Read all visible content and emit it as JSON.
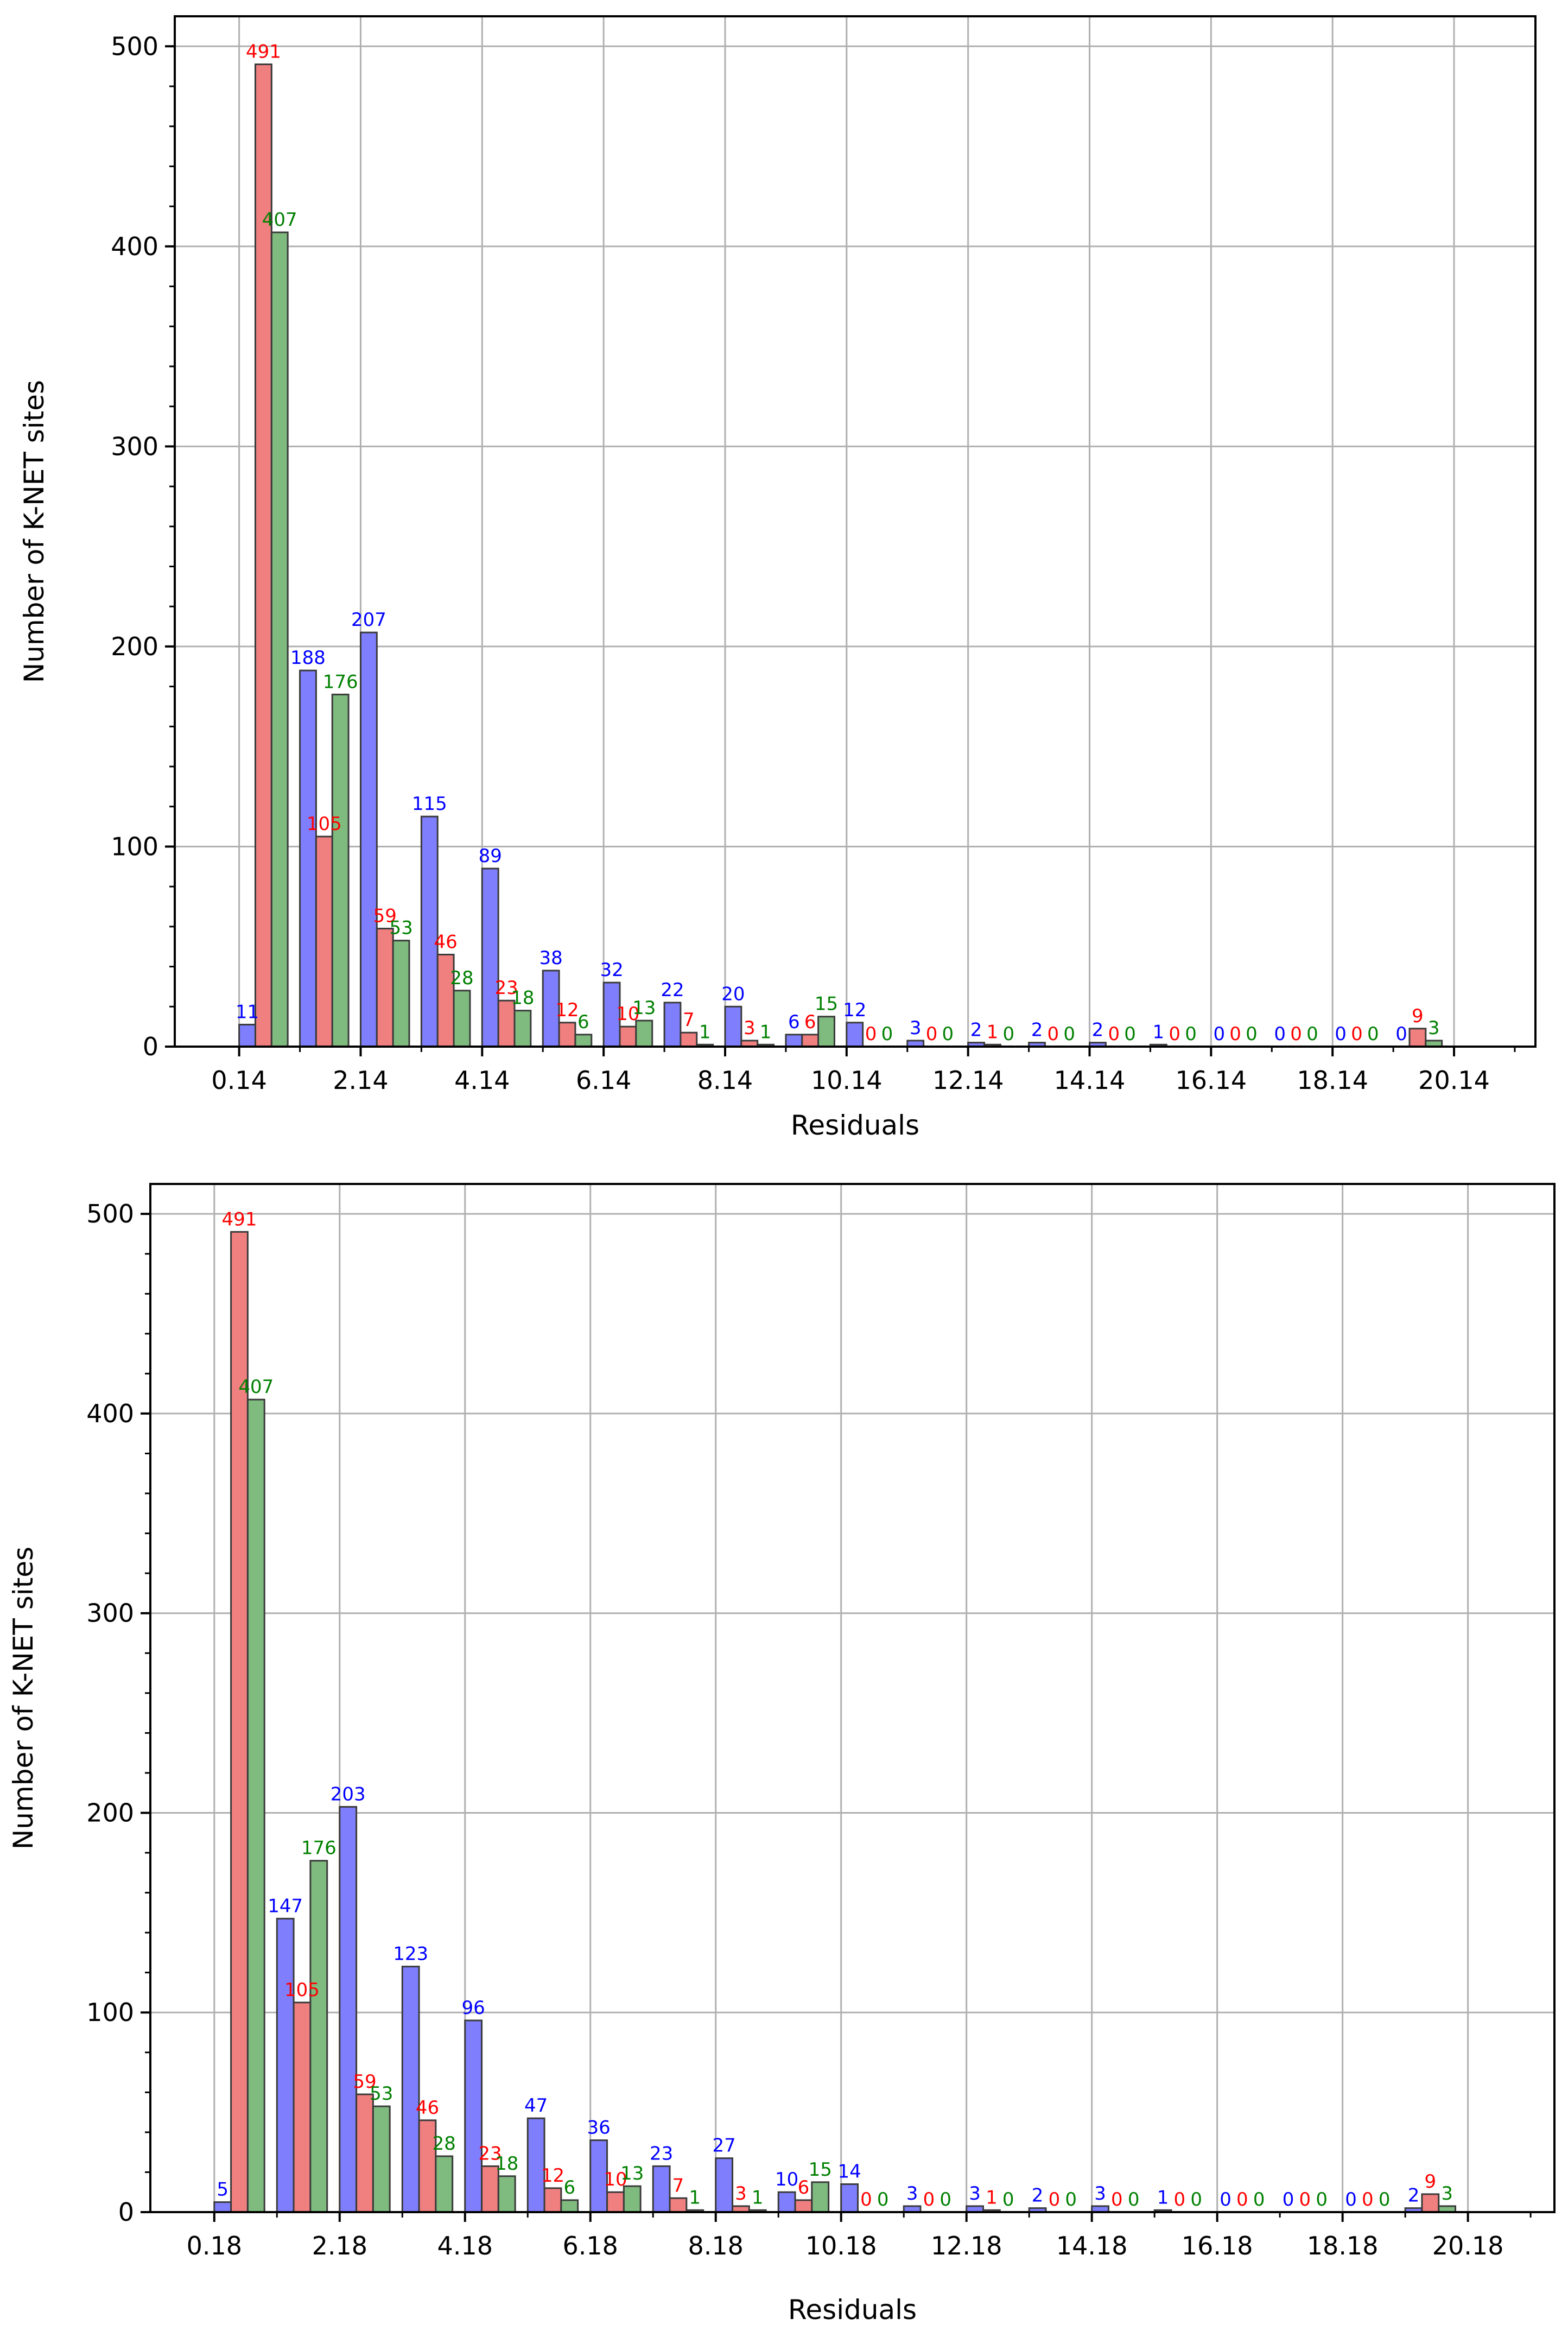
{
  "chart_data": [
    {
      "type": "bar",
      "ylabel": "Number of K-NET sites",
      "xlabel": "Residuals",
      "ylim": [
        0,
        515
      ],
      "xlim": [
        -1.06,
        21.34
      ],
      "yticks": [
        0,
        100,
        200,
        300,
        400,
        500
      ],
      "xtick_labels": [
        "0.14",
        "2.14",
        "4.14",
        "6.14",
        "8.14",
        "10.14",
        "12.14",
        "14.14",
        "16.14",
        "18.14",
        "20.14"
      ],
      "grid": true,
      "series": [
        {
          "color": "#0000ff",
          "values": [
            11,
            188,
            207,
            115,
            89,
            38,
            32,
            22,
            20,
            6,
            12,
            3,
            2,
            2,
            2,
            1,
            0,
            0,
            0,
            0
          ]
        },
        {
          "color": "#ff0000",
          "values": [
            491,
            105,
            59,
            46,
            23,
            12,
            10,
            7,
            3,
            6,
            0,
            0,
            1,
            0,
            0,
            0,
            0,
            0,
            0,
            9
          ]
        },
        {
          "color": "#008000",
          "values": [
            407,
            176,
            53,
            28,
            18,
            6,
            13,
            1,
            1,
            15,
            0,
            0,
            0,
            0,
            0,
            0,
            0,
            0,
            0,
            3
          ]
        }
      ]
    },
    {
      "type": "bar",
      "ylabel": "Number of K-NET sites",
      "xlabel": "Residuals",
      "ylim": [
        0,
        515
      ],
      "xlim": [
        -1.02,
        21.38
      ],
      "yticks": [
        0,
        100,
        200,
        300,
        400,
        500
      ],
      "xtick_labels": [
        "0.18",
        "2.18",
        "4.18",
        "6.18",
        "8.18",
        "10.18",
        "12.18",
        "14.18",
        "16.18",
        "18.18",
        "20.18"
      ],
      "grid": true,
      "series": [
        {
          "color": "#0000ff",
          "values": [
            5,
            147,
            203,
            123,
            96,
            47,
            36,
            23,
            27,
            10,
            14,
            3,
            3,
            2,
            3,
            1,
            0,
            0,
            0,
            2
          ]
        },
        {
          "color": "#ff0000",
          "values": [
            491,
            105,
            59,
            46,
            23,
            12,
            10,
            7,
            3,
            6,
            0,
            0,
            1,
            0,
            0,
            0,
            0,
            0,
            0,
            9
          ]
        },
        {
          "color": "#008000",
          "values": [
            407,
            176,
            53,
            28,
            18,
            6,
            13,
            1,
            1,
            15,
            0,
            0,
            0,
            0,
            0,
            0,
            0,
            0,
            0,
            3
          ]
        }
      ]
    }
  ]
}
